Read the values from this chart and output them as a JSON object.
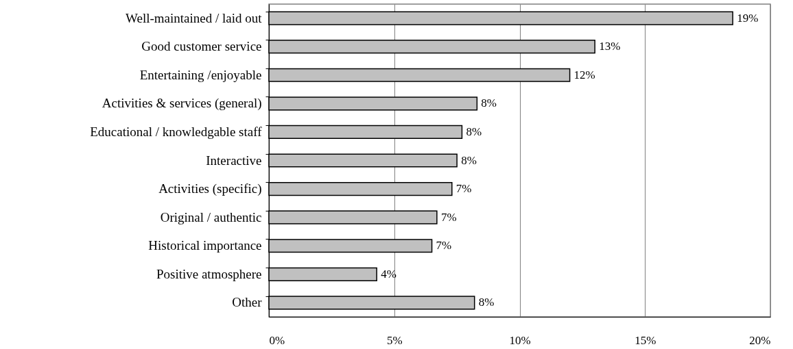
{
  "chart_data": {
    "type": "bar",
    "orientation": "horizontal",
    "categories": [
      "Well-maintained / laid out",
      "Good customer service",
      "Entertaining /enjoyable",
      "Activities & services (general)",
      "Educational / knowledgable staff",
      "Interactive",
      "Activities (specific)",
      "Original / authentic",
      "Historical importance",
      "Positive atmosphere",
      "Other"
    ],
    "values": [
      18.5,
      13.0,
      12.0,
      8.3,
      7.7,
      7.5,
      7.3,
      6.7,
      6.5,
      4.3,
      8.2
    ],
    "value_labels": [
      "19%",
      "13%",
      "12%",
      "8%",
      "8%",
      "8%",
      "7%",
      "7%",
      "7%",
      "4%",
      "8%"
    ],
    "color": "#c0c0c0",
    "xlim": [
      0,
      20
    ],
    "xticks": [
      {
        "value": 0,
        "label": "0%"
      },
      {
        "value": 5,
        "label": "5%"
      },
      {
        "value": 10,
        "label": "10%"
      },
      {
        "value": 15,
        "label": "15%"
      },
      {
        "value": 20,
        "label": "20%"
      }
    ],
    "grid": "x"
  }
}
